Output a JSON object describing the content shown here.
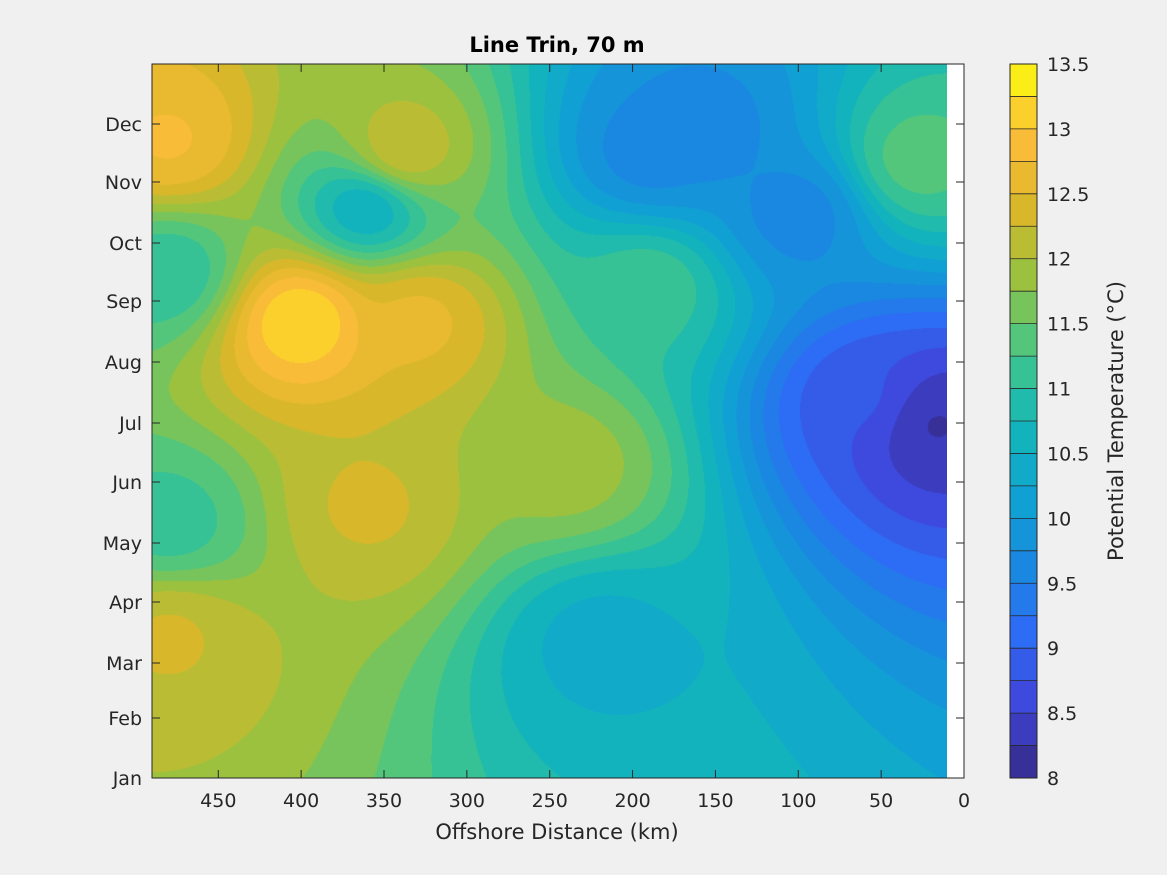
{
  "chart_data": {
    "type": "heatmap",
    "subtype": "filled-contour",
    "title": "Line Trin, 70 m",
    "xlabel": "Offshore Distance (km)",
    "ylabel": "",
    "x_direction": "reversed",
    "xlim": [
      0,
      490
    ],
    "x_ticks": [
      450,
      400,
      350,
      300,
      250,
      200,
      150,
      100,
      50,
      0
    ],
    "x_tick_labels": [
      "450",
      "400",
      "350",
      "300",
      "250",
      "200",
      "150",
      "100",
      "50",
      "0"
    ],
    "y_ticks": [
      "Jan",
      "Feb",
      "Mar",
      "Apr",
      "May",
      "Jun",
      "Jul",
      "Aug",
      "Sep",
      "Oct",
      "Nov",
      "Dec"
    ],
    "colorbar": {
      "label": "Potential Temperature (°C)",
      "range": [
        8,
        13.5
      ],
      "levels": [
        8,
        8.25,
        8.5,
        8.75,
        9,
        9.25,
        9.5,
        9.75,
        10,
        10.25,
        10.5,
        10.75,
        11,
        11.25,
        11.5,
        11.75,
        12,
        12.25,
        12.5,
        12.75,
        13,
        13.25,
        13.5
      ],
      "tick_values": [
        8,
        8.5,
        9,
        9.5,
        10,
        10.5,
        11,
        11.5,
        12,
        12.5,
        13,
        13.5
      ],
      "tick_labels": [
        "8",
        "8.5",
        "9",
        "9.5",
        "10",
        "10.5",
        "11",
        "11.5",
        "12",
        "12.5",
        "13",
        "13.5"
      ],
      "colormap": "parula"
    },
    "features": [
      {
        "x": 400,
        "month": 7.7,
        "value": 13.3
      },
      {
        "x": 480,
        "month": 10.7,
        "value": 12.8
      },
      {
        "x": 330,
        "month": 7.7,
        "value": 12.6
      },
      {
        "x": 340,
        "month": 11.5,
        "value": 12.3
      },
      {
        "x": 360,
        "month": 4.6,
        "value": 12.3
      },
      {
        "x": 480,
        "month": 2.5,
        "value": 12.3
      },
      {
        "x": 20,
        "month": 6.0,
        "value": 8.2
      },
      {
        "x": 60,
        "month": 6.4,
        "value": 8.8
      },
      {
        "x": 190,
        "month": 10.5,
        "value": 9.6
      },
      {
        "x": 160,
        "month": 10.9,
        "value": 9.6
      },
      {
        "x": 100,
        "month": 9.5,
        "value": 9.6
      },
      {
        "x": 360,
        "month": 9.6,
        "value": 10.4
      },
      {
        "x": 220,
        "month": 2.4,
        "value": 10.4
      },
      {
        "x": 190,
        "month": 8.3,
        "value": 11.2
      },
      {
        "x": 240,
        "month": 5.3,
        "value": 11.9
      },
      {
        "x": 30,
        "month": 11.6,
        "value": 11.4
      },
      {
        "x": 480,
        "month": 4.3,
        "value": 11.1
      },
      {
        "x": 480,
        "month": 8.5,
        "value": 11.0
      }
    ]
  }
}
